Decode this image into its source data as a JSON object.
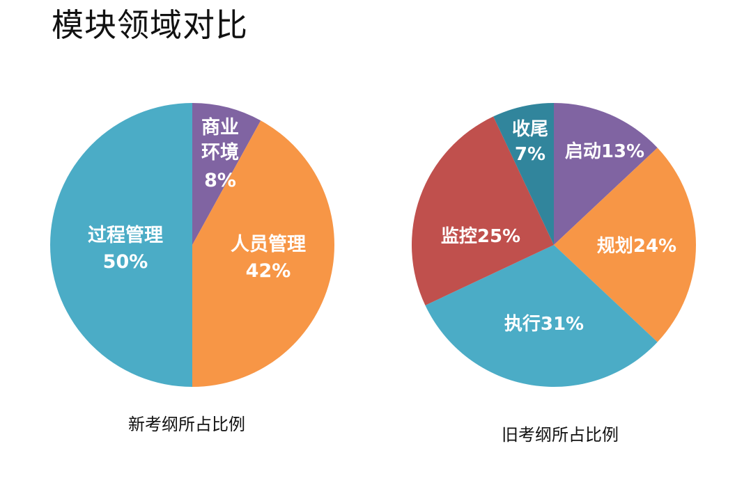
{
  "title": "模块领域对比",
  "colors": {
    "blue": "#4BACC6",
    "orange": "#F79646",
    "purple": "#8064A2",
    "red": "#C0504D",
    "darkblue": "#2E8FAE"
  },
  "chart_data": [
    {
      "type": "pie",
      "caption": "新考纲所占比例",
      "slices": [
        {
          "label_lines": [
            "商业",
            "环境"
          ],
          "value_text": "8%",
          "value": 8,
          "color": "#8064A2"
        },
        {
          "label_lines": [
            "人员管理"
          ],
          "value_text": "42%",
          "value": 42,
          "color": "#F79646"
        },
        {
          "label_lines": [
            "过程管理"
          ],
          "value_text": "50%",
          "value": 50,
          "color": "#4BACC6"
        }
      ]
    },
    {
      "type": "pie",
      "caption": "旧考纲所占比例",
      "slices": [
        {
          "label_lines": [
            "启动13%"
          ],
          "value_text": "",
          "value": 13,
          "color": "#8064A2"
        },
        {
          "label_lines": [
            "规划24%"
          ],
          "value_text": "",
          "value": 24,
          "color": "#F79646"
        },
        {
          "label_lines": [
            "执行31%"
          ],
          "value_text": "",
          "value": 31,
          "color": "#4BACC6"
        },
        {
          "label_lines": [
            "监控25%"
          ],
          "value_text": "",
          "value": 25,
          "color": "#C0504D"
        },
        {
          "label_lines": [
            "收尾"
          ],
          "value_text": "7%",
          "value": 7,
          "color": "#31859C"
        }
      ]
    }
  ]
}
